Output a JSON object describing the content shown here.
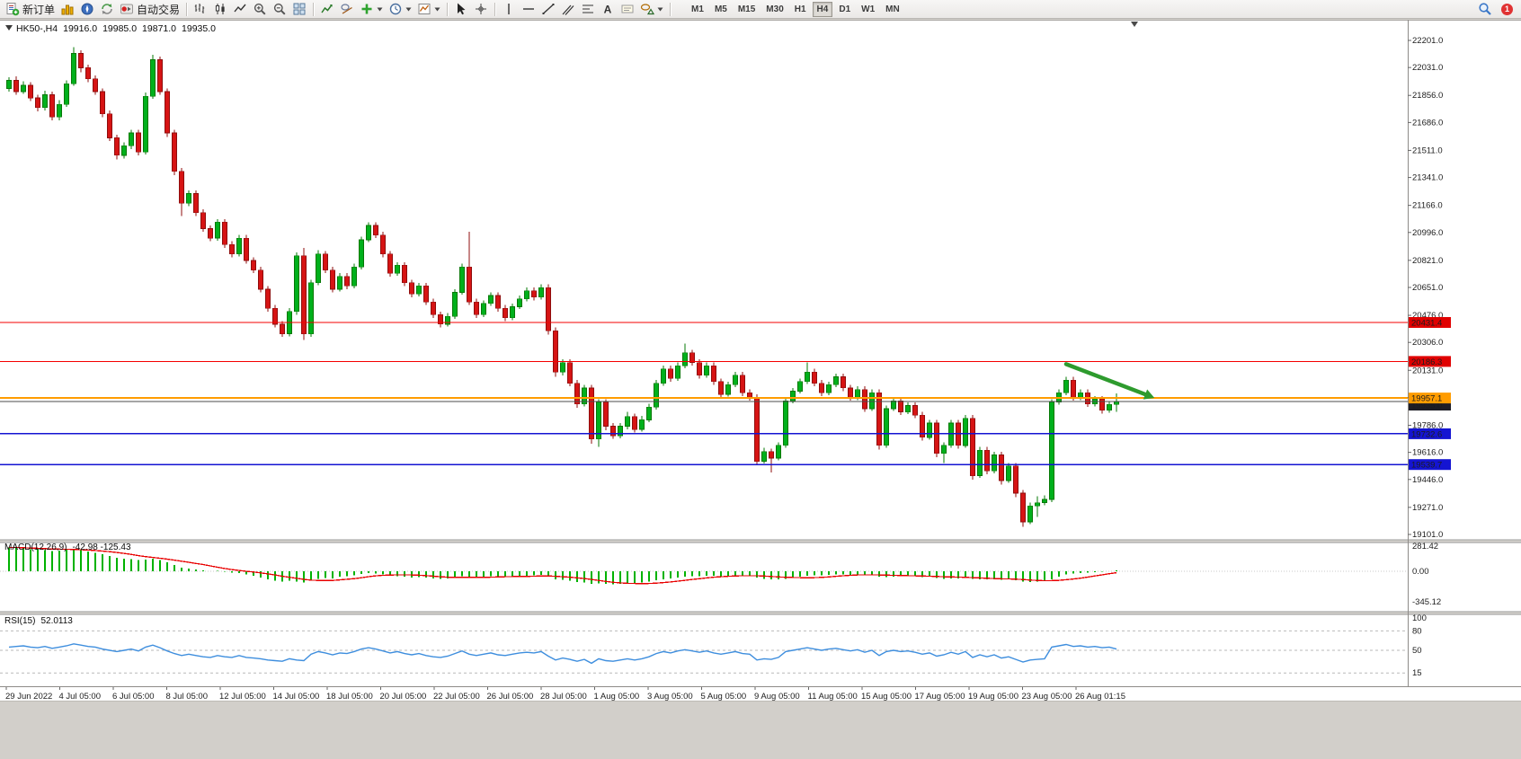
{
  "toolbar": {
    "new_order_label": "新订单",
    "autotrading_label": "自动交易",
    "timeframes": [
      "M1",
      "M5",
      "M15",
      "M30",
      "H1",
      "H4",
      "D1",
      "W1",
      "MN"
    ],
    "active_timeframe": "H4",
    "notification_count": "1"
  },
  "chart": {
    "symbol_period": "HK50-,H4",
    "open": "19916.0",
    "high": "19985.0",
    "low": "19871.0",
    "close": "19935.0",
    "macd_name": "MACD(12,26,9)",
    "macd_values": "-42.98 -125.43",
    "rsi_name": "RSI(15)",
    "rsi_value": "52.0113"
  },
  "theme": {
    "bull": "#00B01C",
    "bull_dark": "#067806",
    "bear": "#D61414",
    "bear_dark": "#8F0D0D",
    "macd": "#00B200",
    "macd_signal": "#E80000",
    "rsi": "#3E8EDE",
    "level_red": "#F50000",
    "level_orange": "#FF9C00",
    "level_blue": "#1414D2",
    "current_price_gray": "#4D4D4D",
    "arrow_green": "#2E9B2E"
  },
  "chart_data": {
    "type": "candlestick",
    "symbol": "HK50-",
    "timeframe": "H4",
    "price_axis": {
      "min": 19101.0,
      "max": 22201.0,
      "ticks": [
        22201,
        22031,
        21856,
        21686,
        21511,
        21341,
        21166,
        20996,
        20821,
        20651,
        20476,
        20306,
        20131,
        19961,
        19786,
        19616,
        19446,
        19271,
        19101
      ]
    },
    "candles": [
      [
        21900,
        21970,
        21880,
        21950
      ],
      [
        21950,
        21975,
        21860,
        21880
      ],
      [
        21880,
        21945,
        21865,
        21920
      ],
      [
        21920,
        21940,
        21820,
        21840
      ],
      [
        21840,
        21860,
        21755,
        21780
      ],
      [
        21780,
        21885,
        21760,
        21860
      ],
      [
        21860,
        21880,
        21700,
        21720
      ],
      [
        21720,
        21825,
        21700,
        21800
      ],
      [
        21800,
        21950,
        21785,
        21930
      ],
      [
        21930,
        22160,
        21915,
        22120
      ],
      [
        22120,
        22140,
        22000,
        22030
      ],
      [
        22030,
        22050,
        21940,
        21960
      ],
      [
        21960,
        21980,
        21860,
        21880
      ],
      [
        21880,
        21900,
        21720,
        21740
      ],
      [
        21740,
        21760,
        21570,
        21590
      ],
      [
        21590,
        21610,
        21455,
        21480
      ],
      [
        21480,
        21560,
        21460,
        21540
      ],
      [
        21540,
        21640,
        21520,
        21620
      ],
      [
        21620,
        21640,
        21480,
        21500
      ],
      [
        21500,
        21875,
        21485,
        21850
      ],
      [
        21850,
        22110,
        21835,
        22080
      ],
      [
        22080,
        22100,
        21860,
        21880
      ],
      [
        21880,
        21900,
        21595,
        21620
      ],
      [
        21620,
        21640,
        21355,
        21380
      ],
      [
        21380,
        21400,
        21100,
        21180
      ],
      [
        21180,
        21260,
        21160,
        21240
      ],
      [
        21240,
        21260,
        21100,
        21120
      ],
      [
        21120,
        21140,
        21000,
        21020
      ],
      [
        21020,
        21040,
        20940,
        20960
      ],
      [
        20960,
        21080,
        20945,
        21060
      ],
      [
        21060,
        21080,
        20900,
        20920
      ],
      [
        20920,
        20940,
        20840,
        20860
      ],
      [
        20860,
        20980,
        20845,
        20960
      ],
      [
        20960,
        20980,
        20800,
        20820
      ],
      [
        20820,
        20840,
        20740,
        20760
      ],
      [
        20760,
        20780,
        20620,
        20640
      ],
      [
        20640,
        20660,
        20500,
        20520
      ],
      [
        20520,
        20540,
        20400,
        20420
      ],
      [
        20420,
        20440,
        20340,
        20360
      ],
      [
        20360,
        20520,
        20345,
        20500
      ],
      [
        20500,
        20870,
        20480,
        20850
      ],
      [
        20850,
        20900,
        20320,
        20360
      ],
      [
        20360,
        20700,
        20340,
        20680
      ],
      [
        20680,
        20885,
        20665,
        20860
      ],
      [
        20860,
        20880,
        20740,
        20760
      ],
      [
        20760,
        20780,
        20620,
        20640
      ],
      [
        20640,
        20740,
        20625,
        20720
      ],
      [
        20720,
        20740,
        20640,
        20660
      ],
      [
        20660,
        20800,
        20645,
        20780
      ],
      [
        20780,
        20970,
        20765,
        20950
      ],
      [
        20950,
        21060,
        20935,
        21040
      ],
      [
        21040,
        21060,
        20960,
        20980
      ],
      [
        20980,
        21000,
        20840,
        20860
      ],
      [
        20860,
        20880,
        20720,
        20740
      ],
      [
        20740,
        20810,
        20725,
        20790
      ],
      [
        20790,
        20810,
        20660,
        20680
      ],
      [
        20680,
        20700,
        20590,
        20610
      ],
      [
        20610,
        20680,
        20595,
        20660
      ],
      [
        20660,
        20680,
        20540,
        20560
      ],
      [
        20560,
        20580,
        20460,
        20480
      ],
      [
        20480,
        20500,
        20400,
        20420
      ],
      [
        20420,
        20490,
        20405,
        20470
      ],
      [
        20470,
        20640,
        20455,
        20620
      ],
      [
        20620,
        20800,
        20605,
        20780
      ],
      [
        20780,
        21000,
        20540,
        20560
      ],
      [
        20560,
        20580,
        20460,
        20480
      ],
      [
        20480,
        20570,
        20465,
        20550
      ],
      [
        20550,
        20620,
        20535,
        20600
      ],
      [
        20600,
        20620,
        20500,
        20520
      ],
      [
        20520,
        20540,
        20440,
        20460
      ],
      [
        20460,
        20550,
        20445,
        20530
      ],
      [
        20530,
        20600,
        20515,
        20580
      ],
      [
        20580,
        20650,
        20565,
        20630
      ],
      [
        20630,
        20650,
        20570,
        20590
      ],
      [
        20590,
        20670,
        20575,
        20650
      ],
      [
        20650,
        20670,
        20355,
        20380
      ],
      [
        20380,
        20400,
        20090,
        20120
      ],
      [
        20120,
        20200,
        20100,
        20180
      ],
      [
        20180,
        20200,
        20030,
        20050
      ],
      [
        20050,
        20070,
        19895,
        19920
      ],
      [
        19920,
        20040,
        19905,
        20020
      ],
      [
        20020,
        20040,
        19670,
        19700
      ],
      [
        19700,
        19950,
        19650,
        19930
      ],
      [
        19930,
        19950,
        19755,
        19780
      ],
      [
        19780,
        19800,
        19700,
        19720
      ],
      [
        19720,
        19800,
        19705,
        19780
      ],
      [
        19780,
        19870,
        19760,
        19840
      ],
      [
        19840,
        19860,
        19740,
        19760
      ],
      [
        19760,
        19845,
        19745,
        19820
      ],
      [
        19820,
        19920,
        19805,
        19900
      ],
      [
        19900,
        20070,
        19885,
        20050
      ],
      [
        20050,
        20160,
        20035,
        20140
      ],
      [
        20140,
        20160,
        20060,
        20080
      ],
      [
        20080,
        20180,
        20065,
        20160
      ],
      [
        20160,
        20300,
        20145,
        20240
      ],
      [
        20240,
        20260,
        20160,
        20180
      ],
      [
        20180,
        20200,
        20080,
        20100
      ],
      [
        20100,
        20180,
        20085,
        20160
      ],
      [
        20160,
        20180,
        20040,
        20060
      ],
      [
        20060,
        20080,
        19960,
        19980
      ],
      [
        19980,
        20060,
        19965,
        20040
      ],
      [
        20040,
        20120,
        20025,
        20100
      ],
      [
        20100,
        20120,
        19970,
        19990
      ],
      [
        19990,
        20010,
        19940,
        19960
      ],
      [
        19960,
        19980,
        19535,
        19560
      ],
      [
        19560,
        19645,
        19545,
        19620
      ],
      [
        19620,
        19640,
        19490,
        19580
      ],
      [
        19580,
        19680,
        19565,
        19660
      ],
      [
        19660,
        19960,
        19645,
        19940
      ],
      [
        19940,
        20020,
        19925,
        20000
      ],
      [
        20000,
        20080,
        19985,
        20060
      ],
      [
        20060,
        20180,
        20045,
        20120
      ],
      [
        20120,
        20140,
        20030,
        20050
      ],
      [
        20050,
        20070,
        19970,
        19990
      ],
      [
        19990,
        20060,
        19975,
        20040
      ],
      [
        20040,
        20110,
        20025,
        20090
      ],
      [
        20090,
        20110,
        20000,
        20020
      ],
      [
        20020,
        20040,
        19940,
        19960
      ],
      [
        19960,
        20030,
        19945,
        20010
      ],
      [
        20010,
        20030,
        19870,
        19890
      ],
      [
        19890,
        20010,
        19875,
        19990
      ],
      [
        19990,
        20010,
        19635,
        19660
      ],
      [
        19660,
        19910,
        19645,
        19890
      ],
      [
        19890,
        19960,
        19875,
        19940
      ],
      [
        19940,
        19960,
        19850,
        19870
      ],
      [
        19870,
        19930,
        19855,
        19910
      ],
      [
        19910,
        19930,
        19830,
        19850
      ],
      [
        19850,
        19870,
        19690,
        19710
      ],
      [
        19710,
        19820,
        19695,
        19800
      ],
      [
        19800,
        19820,
        19585,
        19610
      ],
      [
        19610,
        19680,
        19550,
        19660
      ],
      [
        19660,
        19820,
        19645,
        19800
      ],
      [
        19800,
        19820,
        19640,
        19660
      ],
      [
        19660,
        19850,
        19645,
        19830
      ],
      [
        19830,
        19850,
        19445,
        19470
      ],
      [
        19470,
        19650,
        19455,
        19630
      ],
      [
        19630,
        19650,
        19480,
        19500
      ],
      [
        19500,
        19620,
        19485,
        19600
      ],
      [
        19600,
        19620,
        19415,
        19440
      ],
      [
        19440,
        19550,
        19425,
        19530
      ],
      [
        19530,
        19550,
        19335,
        19360
      ],
      [
        19360,
        19380,
        19150,
        19180
      ],
      [
        19180,
        19300,
        19165,
        19280
      ],
      [
        19280,
        19340,
        19210,
        19300
      ],
      [
        19300,
        19345,
        19285,
        19320
      ],
      [
        19320,
        19950,
        19305,
        19930
      ],
      [
        19930,
        20010,
        19915,
        19990
      ],
      [
        19990,
        20090,
        19975,
        20070
      ],
      [
        20070,
        20090,
        19940,
        19960
      ],
      [
        19960,
        20010,
        19945,
        19990
      ],
      [
        19990,
        20010,
        19900,
        19920
      ],
      [
        19920,
        19970,
        19905,
        19950
      ],
      [
        19950,
        19970,
        19860,
        19880
      ],
      [
        19880,
        19936,
        19865,
        19916
      ],
      [
        19916,
        19985,
        19871,
        19935
      ]
    ],
    "hlines": [
      {
        "price": 20431.4,
        "label": "20431.4",
        "color": "#F50000",
        "width": 1.2,
        "label_bg": "#E00000",
        "label_fg": "#FFFFFF"
      },
      {
        "price": 20186.3,
        "label": "20186.3",
        "color": "#F50000",
        "width": 1.2,
        "label_bg": "#E00000",
        "label_fg": "#FFFFFF"
      },
      {
        "price": 19957.1,
        "label": "19957.1",
        "color": "#FF9C00",
        "width": 2,
        "label_bg": "#FF9C00",
        "label_fg": "#302000"
      },
      {
        "price": 19732.6,
        "label": "19732.6",
        "color": "#1414D2",
        "width": 1.6,
        "label_bg": "#1414D2",
        "label_fg": "#FFFFFF"
      },
      {
        "price": 19539.7,
        "label": "19539.7",
        "color": "#1414D2",
        "width": 1.6,
        "label_bg": "#1414D2",
        "label_fg": "#FFFFFF"
      }
    ],
    "current_price": {
      "value": 19935.0,
      "label": "19935.0",
      "line_color": "#4D4D4D",
      "label_bg": "#1D1D26",
      "label_fg": "#FFFFFF"
    },
    "arrow": {
      "from_index": 147,
      "from_price": 20170,
      "to_index": 158,
      "to_price": 19980,
      "color": "#2E9B2E"
    },
    "macd": {
      "max": 281.42,
      "min": -345.12,
      "ticks": [
        281.42,
        0,
        -345.12
      ],
      "hist": [
        265,
        270,
        255,
        245,
        250,
        235,
        225,
        230,
        240,
        250,
        235,
        220,
        205,
        190,
        170,
        150,
        140,
        135,
        125,
        130,
        140,
        125,
        100,
        70,
        40,
        30,
        20,
        10,
        0,
        5,
        -5,
        -15,
        -20,
        -35,
        -50,
        -70,
        -90,
        -110,
        -120,
        -110,
        -120,
        -130,
        -110,
        -85,
        -75,
        -80,
        -60,
        -55,
        -45,
        -30,
        -20,
        -25,
        -35,
        -50,
        -55,
        -60,
        -70,
        -65,
        -70,
        -80,
        -85,
        -80,
        -70,
        -55,
        -60,
        -65,
        -60,
        -55,
        -60,
        -65,
        -60,
        -55,
        -50,
        -45,
        -40,
        -60,
        -90,
        -100,
        -110,
        -125,
        -130,
        -145,
        -140,
        -145,
        -150,
        -145,
        -140,
        -135,
        -130,
        -120,
        -105,
        -90,
        -80,
        -70,
        -60,
        -55,
        -55,
        -50,
        -50,
        -55,
        -50,
        -45,
        -45,
        -50,
        -70,
        -85,
        -95,
        -95,
        -85,
        -70,
        -60,
        -50,
        -45,
        -45,
        -40,
        -35,
        -35,
        -40,
        -40,
        -45,
        -45,
        -60,
        -65,
        -60,
        -55,
        -50,
        -55,
        -65,
        -60,
        -75,
        -85,
        -80,
        -80,
        -70,
        -85,
        -90,
        -95,
        -90,
        -100,
        -95,
        -105,
        -120,
        -125,
        -120,
        -115,
        -90,
        -60,
        -35,
        -25,
        -20,
        -15,
        -10,
        -5,
        0,
        10
      ]
    },
    "rsi": {
      "ticks": [
        100,
        80,
        50,
        15
      ],
      "levels": [
        80,
        50,
        15
      ],
      "values": [
        55,
        56,
        57,
        55,
        54,
        56,
        53,
        55,
        57,
        60,
        58,
        56,
        55,
        52,
        50,
        48,
        50,
        52,
        49,
        55,
        58,
        54,
        49,
        45,
        42,
        44,
        42,
        40,
        39,
        42,
        40,
        39,
        42,
        39,
        38,
        37,
        35,
        34,
        33,
        37,
        35,
        34,
        44,
        48,
        46,
        43,
        46,
        45,
        48,
        52,
        54,
        52,
        49,
        46,
        48,
        45,
        43,
        45,
        42,
        40,
        39,
        41,
        45,
        49,
        44,
        42,
        44,
        46,
        43,
        42,
        44,
        46,
        47,
        46,
        48,
        41,
        35,
        38,
        36,
        33,
        36,
        30,
        37,
        34,
        33,
        35,
        37,
        35,
        37,
        40,
        45,
        48,
        46,
        49,
        51,
        49,
        47,
        49,
        46,
        44,
        46,
        48,
        45,
        44,
        35,
        37,
        36,
        39,
        48,
        50,
        52,
        54,
        52,
        50,
        52,
        53,
        51,
        49,
        51,
        47,
        50,
        42,
        48,
        50,
        48,
        49,
        47,
        44,
        46,
        41,
        43,
        47,
        44,
        48,
        39,
        43,
        40,
        43,
        38,
        40,
        36,
        32,
        35,
        36,
        37,
        55,
        57,
        59,
        56,
        57,
        55,
        56,
        54,
        55,
        52
      ]
    },
    "time_axis": [
      "29 Jun 2022",
      "4 Jul 05:00",
      "6 Jul 05:00",
      "8 Jul 05:00",
      "12 Jul 05:00",
      "14 Jul 05:00",
      "18 Jul 05:00",
      "20 Jul 05:00",
      "22 Jul 05:00",
      "26 Jul 05:00",
      "28 Jul 05:00",
      "1 Aug 05:00",
      "3 Aug 05:00",
      "5 Aug 05:00",
      "9 Aug 05:00",
      "11 Aug 05:00",
      "15 Aug 05:00",
      "17 Aug 05:00",
      "19 Aug 05:00",
      "23 Aug 05:00",
      "26 Aug 01:15"
    ]
  }
}
